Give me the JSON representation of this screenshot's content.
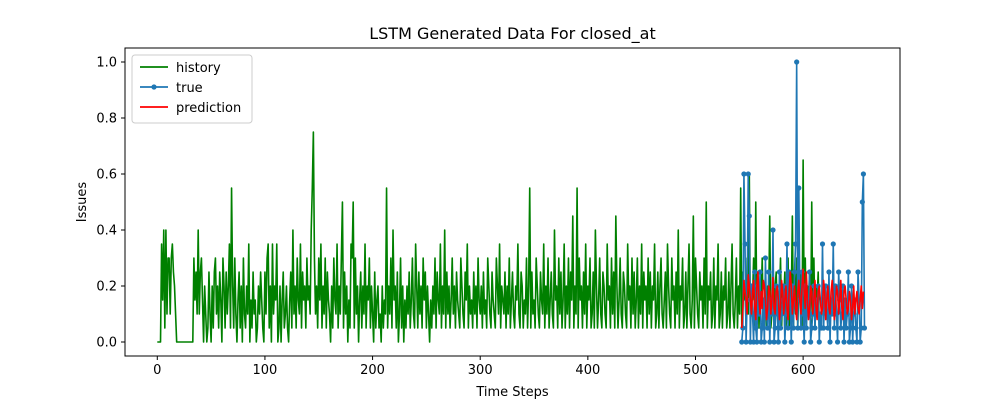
{
  "chart_data": {
    "type": "line",
    "title": "LSTM Generated Data For closed_at",
    "xlabel": "Time Steps",
    "ylabel": "Issues",
    "xlim": [
      -30,
      690
    ],
    "ylim": [
      -0.05,
      1.05
    ],
    "x_ticks": [
      0,
      100,
      200,
      300,
      400,
      500,
      600
    ],
    "y_ticks": [
      0.0,
      0.2,
      0.4,
      0.6,
      0.8,
      1.0
    ],
    "x_tick_labels": [
      "0",
      "100",
      "200",
      "300",
      "400",
      "500",
      "600"
    ],
    "y_tick_labels": [
      "0.0",
      "0.2",
      "0.4",
      "0.6",
      "0.8",
      "1.0"
    ],
    "grid": false,
    "legend_position": "top-left",
    "series": [
      {
        "name": "history",
        "color": "#008000",
        "marker": false,
        "x_start": 0,
        "values": [
          0,
          0,
          0,
          0,
          0.35,
          0.15,
          0.4,
          0.05,
          0.4,
          0.1,
          0.3,
          0.3,
          0.1,
          0.3,
          0.35,
          0.25,
          0.2,
          0.1,
          0,
          0,
          0,
          0,
          0,
          0,
          0,
          0,
          0,
          0,
          0,
          0,
          0,
          0,
          0,
          0,
          0.3,
          0.15,
          0.25,
          0.1,
          0.4,
          0.1,
          0.25,
          0.3,
          0.15,
          0,
          0.2,
          0.1,
          0,
          0.05,
          0.25,
          0.1,
          0,
          0.2,
          0.05,
          0.25,
          0.3,
          0.1,
          0.2,
          0.05,
          0.25,
          0.15,
          0,
          0.3,
          0.2,
          0.05,
          0.25,
          0.1,
          0.2,
          0.35,
          0.05,
          0.55,
          0.2,
          0.05,
          0.3,
          0.1,
          0,
          0.15,
          0.25,
          0.05,
          0.2,
          0,
          0.3,
          0.1,
          0.05,
          0.2,
          0.1,
          0.35,
          0,
          0.15,
          0.05,
          0.25,
          0.1,
          0.15,
          0,
          0.05,
          0.2,
          0.1,
          0.25,
          0.15,
          0.05,
          0,
          0.25,
          0.1,
          0.3,
          0.35,
          0.05,
          0.2,
          0,
          0.35,
          0.1,
          0.2,
          0.15,
          0.35,
          0,
          0.05,
          0.2,
          0,
          0.15,
          0.25,
          0.05,
          0.1,
          0.2,
          0.05,
          0,
          0.15,
          0.25,
          0.05,
          0.4,
          0.1,
          0.2,
          0.05,
          0.3,
          0.15,
          0.1,
          0.35,
          0.05,
          0.25,
          0.15,
          0.2,
          0.05,
          0.3,
          0.15,
          0.2,
          0.1,
          0.4,
          0.55,
          0.75,
          0.3,
          0.1,
          0.2,
          0.05,
          0.3,
          0.15,
          0.35,
          0.05,
          0.2,
          0.1,
          0.3,
          0.05,
          0.25,
          0.15,
          0.1,
          0,
          0.2,
          0.05,
          0.3,
          0.15,
          0.1,
          0.35,
          0.05,
          0.2,
          0.1,
          0.3,
          0.5,
          0.05,
          0.25,
          0.1,
          0.2,
          0,
          0.15,
          0.05,
          0.35,
          0.3,
          0.5,
          0.05,
          0.3,
          0.1,
          0.2,
          0,
          0.15,
          0.25,
          0.05,
          0.2,
          0.1,
          0.35,
          0.05,
          0.2,
          0.15,
          0.3,
          0.05,
          0.2,
          0.1,
          0,
          0.25,
          0.05,
          0.15,
          0.2,
          0.05,
          0.1,
          0,
          0.2,
          0.05,
          0.15,
          0.1,
          0.55,
          0.05,
          0.2,
          0.1,
          0.3,
          0.05,
          0.4,
          0.15,
          0.2,
          0.05,
          0.25,
          0,
          0.1,
          0.3,
          0.05,
          0.2,
          0,
          0.15,
          0.05,
          0.2,
          0.1,
          0.25,
          0.05,
          0.15,
          0.3,
          0.1,
          0.05,
          0.35,
          0.2,
          0.05,
          0.25,
          0.1,
          0.2,
          0.05,
          0.3,
          0.15,
          0.25,
          0.05,
          0.2,
          0.1,
          0,
          0.15,
          0.05,
          0.2,
          0.1,
          0.3,
          0.05,
          0.25,
          0.15,
          0.1,
          0.35,
          0.05,
          0.2,
          0.1,
          0.4,
          0.05,
          0.25,
          0.1,
          0.2,
          0.05,
          0.15,
          0.3,
          0.1,
          0.2,
          0.05,
          0.25,
          0.15,
          0.1,
          0.05,
          0.3,
          0.2,
          0.1,
          0.05,
          0.25,
          0.15,
          0.35,
          0.05,
          0.2,
          0.1,
          0.15,
          0.05,
          0.25,
          0.1,
          0.2,
          0.05,
          0.3,
          0.15,
          0.1,
          0.2,
          0.05,
          0.25,
          0.1,
          0.15,
          0.05,
          0.3,
          0.2,
          0.1,
          0.05,
          0.25,
          0.15,
          0.1,
          0.05,
          0.3,
          0.2,
          0.1,
          0.35,
          0.05,
          0.2,
          0.15,
          0.1,
          0.25,
          0.05,
          0.2,
          0.1,
          0.3,
          0.05,
          0.15,
          0.25,
          0.1,
          0.05,
          0.2,
          0.15,
          0.35,
          0.1,
          0.05,
          0.25,
          0.2,
          0.05,
          0.15,
          0.1,
          0.3,
          0.05,
          0.2,
          0.55,
          0.05,
          0.25,
          0.1,
          0.15,
          0.05,
          0.3,
          0.2,
          0.1,
          0.05,
          0.25,
          0.15,
          0.1,
          0.35,
          0.05,
          0.2,
          0.1,
          0.3,
          0.05,
          0.15,
          0.25,
          0.1,
          0.05,
          0.4,
          0.15,
          0.2,
          0.05,
          0.3,
          0.1,
          0.25,
          0.05,
          0.15,
          0.35,
          0.05,
          0.2,
          0.1,
          0.3,
          0.05,
          0.25,
          0.15,
          0.45,
          0.05,
          0.2,
          0.1,
          0.55,
          0.05,
          0.3,
          0.15,
          0.2,
          0.05,
          0.25,
          0.1,
          0.35,
          0.05,
          0.2,
          0.15,
          0.3,
          0.05,
          0.1,
          0.25,
          0.05,
          0.4,
          0.2,
          0.05,
          0.15,
          0.3,
          0.1,
          0.05,
          0.25,
          0.2,
          0.1,
          0.05,
          0.35,
          0.15,
          0.2,
          0.05,
          0.3,
          0.1,
          0.25,
          0.05,
          0.45,
          0.2,
          0.05,
          0.15,
          0.3,
          0.1,
          0.05,
          0.25,
          0.2,
          0.1,
          0.05,
          0.35,
          0.15,
          0.2,
          0.05,
          0.3,
          0.1,
          0.25,
          0.05,
          0.15,
          0.3,
          0.05,
          0.2,
          0.1,
          0.35,
          0.05,
          0.25,
          0.15,
          0.2,
          0.05,
          0.3,
          0.1,
          0.25,
          0.05,
          0.2,
          0.15,
          0.35,
          0.05,
          0.1,
          0.25,
          0.05,
          0.2,
          0.3,
          0.1,
          0.05,
          0.15,
          0.25,
          0.05,
          0.35,
          0.2,
          0.1,
          0.05,
          0.3,
          0.15,
          0.2,
          0.05,
          0.25,
          0.1,
          0.4,
          0.05,
          0.2,
          0.15,
          0.3,
          0.05,
          0.1,
          0.25,
          0.05,
          0.2,
          0.35,
          0.1,
          0.05,
          0.15,
          0.45,
          0.05,
          0.3,
          0.2,
          0.1,
          0.05,
          0.25,
          0.15,
          0.2,
          0.05,
          0.3,
          0.1,
          0.5,
          0.05,
          0.2,
          0.15,
          0.25,
          0.05,
          0.1,
          0.3,
          0.05,
          0.2,
          0.15,
          0.35,
          0.05,
          0.1,
          0.25,
          0.05,
          0.2,
          0.15,
          0.3,
          0.05,
          0.1,
          0.25,
          0.05,
          0.2,
          0.35,
          0.1,
          0.05,
          0.15,
          0.3,
          0.05,
          0.2,
          0.1,
          0.55,
          0.05,
          0.25,
          0.15,
          0.2,
          0.05,
          0.3,
          0.1,
          0.6,
          0.05,
          0.2,
          0.15,
          0.3,
          0.05,
          0.5,
          0.1,
          0.25,
          0.05,
          0.2,
          0.15,
          0.3,
          0.05,
          0.1,
          0.25,
          0.05,
          0.2,
          0.15,
          0.45,
          0.05,
          0.1,
          0.3,
          0.05,
          0.2,
          0.25,
          0.1,
          0.05,
          0.15,
          0.3,
          0.05,
          0.2,
          0.15,
          0.25,
          0.05,
          0.1,
          0.3,
          0.05,
          0.2,
          0.15,
          0.45,
          0.05,
          0.25,
          0.1,
          0.3,
          0.05,
          0.2,
          0.15,
          0.25,
          0.05,
          0.65,
          0.1,
          0.3,
          0.05,
          0.2,
          0.15,
          0.25,
          0.05,
          0.5,
          0.1,
          0.3,
          0.05,
          0.2,
          0.15,
          0.25,
          0.05,
          0.1
        ]
      },
      {
        "name": "true",
        "color": "#1f77b4",
        "marker": true,
        "x_start": 543,
        "values": [
          0,
          0.05,
          0.6,
          0.35,
          0,
          0.15,
          0.6,
          0.45,
          0,
          0.2,
          0.1,
          0,
          0.25,
          0.05,
          0,
          0.2,
          0.1,
          0.25,
          0,
          0.05,
          0.15,
          0,
          0.3,
          0.1,
          0.05,
          0.25,
          0,
          0.15,
          0.1,
          0.4,
          0,
          0.05,
          0.2,
          0.1,
          0,
          0.25,
          0.05,
          0.1,
          0.15,
          0.2,
          0,
          0.1,
          0.35,
          0.05,
          0.25,
          0.15,
          0,
          0.2,
          0.05,
          0.25,
          0.35,
          1.0,
          0.05,
          0.55,
          0.15,
          0.05,
          0.25,
          0.1,
          0,
          0.2,
          0.05,
          0.15,
          0.1,
          0.25,
          0,
          0.05,
          0.1,
          0.2,
          0.05,
          0.15,
          0.1,
          0.2,
          0,
          0.1,
          0.05,
          0.35,
          0.05,
          0.15,
          0.2,
          0.1,
          0.05,
          0.25,
          0,
          0.15,
          0.1,
          0.35,
          0.05,
          0.2,
          0.1,
          0,
          0.25,
          0.15,
          0.05,
          0.1,
          0.2,
          0,
          0.15,
          0.05,
          0.1,
          0.25,
          0,
          0.05,
          0.2,
          0,
          0.1,
          0.15,
          0.05,
          0,
          0.25,
          0.15,
          0,
          0.05,
          0.5,
          0.6,
          0.05
        ]
      },
      {
        "name": "prediction",
        "color": "#ff0000",
        "marker": false,
        "x_start": 543,
        "values": [
          0.05,
          0.12,
          0.22,
          0.18,
          0.15,
          0.1,
          0.24,
          0.2,
          0.15,
          0.1,
          0.18,
          0.22,
          0.12,
          0.08,
          0.2,
          0.25,
          0.15,
          0.1,
          0.18,
          0.12,
          0.22,
          0.2,
          0.15,
          0.08,
          0.12,
          0.2,
          0.18,
          0.1,
          0.15,
          0.23,
          0.12,
          0.1,
          0.18,
          0.2,
          0.15,
          0.08,
          0.12,
          0.22,
          0.18,
          0.1,
          0.15,
          0.2,
          0.12,
          0.08,
          0.18,
          0.25,
          0.2,
          0.1,
          0.15,
          0.2,
          0.12,
          0.08,
          0.18,
          0.22,
          0.15,
          0.1,
          0.2,
          0.26,
          0.18,
          0.12,
          0.25,
          0.15,
          0.08,
          0.12,
          0.2,
          0.18,
          0.1,
          0.15,
          0.22,
          0.12,
          0.08,
          0.18,
          0.2,
          0.15,
          0.1,
          0.12,
          0.22,
          0.18,
          0.08,
          0.15,
          0.2,
          0.12,
          0.1,
          0.18,
          0.22,
          0.15,
          0.08,
          0.12,
          0.2,
          0.18,
          0.1,
          0.15,
          0.22,
          0.12,
          0.08,
          0.18,
          0.2,
          0.15,
          0.1,
          0.12,
          0.18,
          0.15,
          0.08,
          0.12,
          0.2,
          0.1,
          0.15,
          0.18,
          0.12,
          0.1,
          0.15,
          0.2,
          0.12,
          0.18
        ]
      }
    ]
  }
}
